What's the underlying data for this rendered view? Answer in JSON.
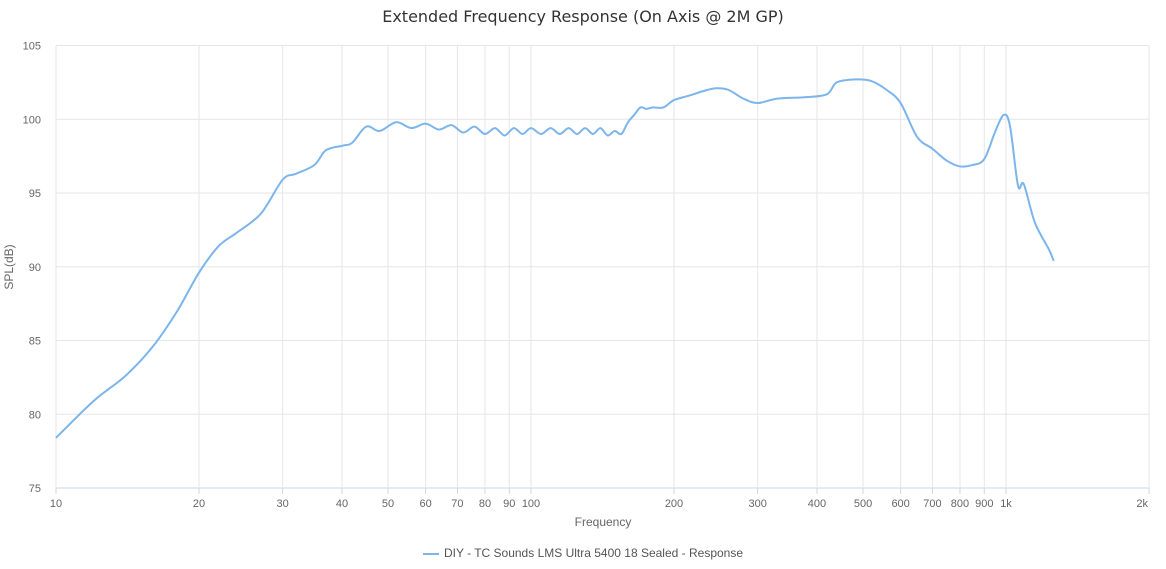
{
  "chart_data": {
    "type": "line",
    "title": "Extended Frequency Response (On Axis @ 2M GP)",
    "xlabel": "Frequency",
    "ylabel": "SPL(dB)",
    "xscale": "log",
    "xlim": [
      10,
      2000
    ],
    "ylim": [
      75,
      105
    ],
    "grid": true,
    "legend_position": "bottom-center",
    "x_ticks": [
      {
        "v": 10,
        "label": "10"
      },
      {
        "v": 20,
        "label": "20"
      },
      {
        "v": 30,
        "label": "30"
      },
      {
        "v": 40,
        "label": "40"
      },
      {
        "v": 50,
        "label": "50"
      },
      {
        "v": 60,
        "label": "60"
      },
      {
        "v": 70,
        "label": "70"
      },
      {
        "v": 80,
        "label": "80"
      },
      {
        "v": 90,
        "label": "90"
      },
      {
        "v": 100,
        "label": "100"
      },
      {
        "v": 200,
        "label": "200"
      },
      {
        "v": 300,
        "label": "300"
      },
      {
        "v": 400,
        "label": "400"
      },
      {
        "v": 500,
        "label": "500"
      },
      {
        "v": 600,
        "label": "600"
      },
      {
        "v": 700,
        "label": "700"
      },
      {
        "v": 800,
        "label": "800"
      },
      {
        "v": 900,
        "label": "900"
      },
      {
        "v": 1000,
        "label": "1k"
      },
      {
        "v": 2000,
        "label": "2k"
      }
    ],
    "y_ticks": [
      75,
      80,
      85,
      90,
      95,
      100,
      105
    ],
    "color": "#7cb5ec",
    "series": [
      {
        "name": "DIY - TC Sounds LMS Ultra 5400 18 Sealed - Response",
        "x": [
          10,
          12,
          14,
          16,
          18,
          20,
          22,
          24,
          27,
          30,
          32,
          35,
          37,
          40,
          42,
          45,
          48,
          52,
          56,
          60,
          64,
          68,
          72,
          76,
          80,
          84,
          88,
          92,
          96,
          100,
          105,
          110,
          115,
          120,
          125,
          130,
          135,
          140,
          145,
          150,
          155,
          160,
          165,
          170,
          175,
          180,
          190,
          200,
          215,
          230,
          245,
          260,
          280,
          300,
          330,
          380,
          420,
          440,
          480,
          520,
          560,
          600,
          650,
          700,
          750,
          800,
          850,
          900,
          950,
          990,
          1020,
          1060,
          1090,
          1150,
          1230,
          1260
        ],
        "y": [
          78.4,
          80.9,
          82.6,
          84.6,
          87.0,
          89.6,
          91.4,
          92.3,
          93.6,
          95.9,
          96.3,
          96.9,
          97.9,
          98.2,
          98.4,
          99.5,
          99.2,
          99.8,
          99.4,
          99.7,
          99.3,
          99.6,
          99.1,
          99.5,
          99.0,
          99.4,
          98.9,
          99.4,
          99.0,
          99.4,
          99.0,
          99.4,
          99.0,
          99.4,
          99.0,
          99.4,
          99.0,
          99.4,
          98.9,
          99.2,
          99.0,
          99.8,
          100.3,
          100.8,
          100.7,
          100.8,
          100.8,
          101.3,
          101.6,
          101.9,
          102.1,
          102.0,
          101.4,
          101.1,
          101.4,
          101.5,
          101.7,
          102.5,
          102.7,
          102.6,
          102.0,
          101.1,
          98.8,
          98.0,
          97.2,
          96.8,
          96.9,
          97.3,
          99.2,
          100.3,
          99.5,
          95.5,
          95.6,
          93.0,
          91.2,
          90.4
        ]
      }
    ]
  }
}
